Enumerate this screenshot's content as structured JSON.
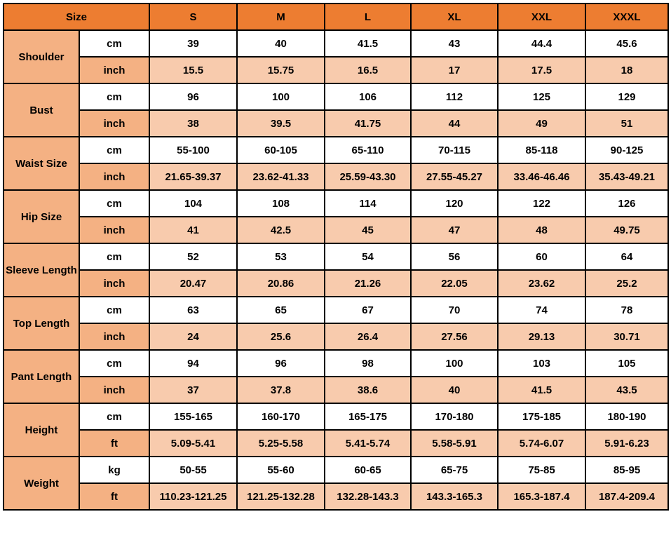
{
  "header": {
    "size_label": "Size",
    "sizes": [
      "S",
      "M",
      "L",
      "XL",
      "XXL",
      "XXXL"
    ]
  },
  "colors": {
    "header": "#ED7D31",
    "label": "#F4B183",
    "alt_row": "#F8CBAD"
  },
  "rows": [
    {
      "label": "Shoulder",
      "units": [
        {
          "unit": "cm",
          "values": [
            "39",
            "40",
            "41.5",
            "43",
            "44.4",
            "45.6"
          ]
        },
        {
          "unit": "inch",
          "values": [
            "15.5",
            "15.75",
            "16.5",
            "17",
            "17.5",
            "18"
          ]
        }
      ]
    },
    {
      "label": "Bust",
      "units": [
        {
          "unit": "cm",
          "values": [
            "96",
            "100",
            "106",
            "112",
            "125",
            "129"
          ]
        },
        {
          "unit": "inch",
          "values": [
            "38",
            "39.5",
            "41.75",
            "44",
            "49",
            "51"
          ]
        }
      ]
    },
    {
      "label": "Waist Size",
      "units": [
        {
          "unit": "cm",
          "values": [
            "55-100",
            "60-105",
            "65-110",
            "70-115",
            "85-118",
            "90-125"
          ]
        },
        {
          "unit": "inch",
          "values": [
            "21.65-39.37",
            "23.62-41.33",
            "25.59-43.30",
            "27.55-45.27",
            "33.46-46.46",
            "35.43-49.21"
          ]
        }
      ]
    },
    {
      "label": "Hip Size",
      "units": [
        {
          "unit": "cm",
          "values": [
            "104",
            "108",
            "114",
            "120",
            "122",
            "126"
          ]
        },
        {
          "unit": "inch",
          "values": [
            "41",
            "42.5",
            "45",
            "47",
            "48",
            "49.75"
          ]
        }
      ]
    },
    {
      "label": "Sleeve Length",
      "units": [
        {
          "unit": "cm",
          "values": [
            "52",
            "53",
            "54",
            "56",
            "60",
            "64"
          ]
        },
        {
          "unit": "inch",
          "values": [
            "20.47",
            "20.86",
            "21.26",
            "22.05",
            "23.62",
            "25.2"
          ]
        }
      ]
    },
    {
      "label": "Top Length",
      "units": [
        {
          "unit": "cm",
          "values": [
            "63",
            "65",
            "67",
            "70",
            "74",
            "78"
          ]
        },
        {
          "unit": "inch",
          "values": [
            "24",
            "25.6",
            "26.4",
            "27.56",
            "29.13",
            "30.71"
          ]
        }
      ]
    },
    {
      "label": "Pant Length",
      "units": [
        {
          "unit": "cm",
          "values": [
            "94",
            "96",
            "98",
            "100",
            "103",
            "105"
          ]
        },
        {
          "unit": "inch",
          "values": [
            "37",
            "37.8",
            "38.6",
            "40",
            "41.5",
            "43.5"
          ]
        }
      ]
    },
    {
      "label": "Height",
      "units": [
        {
          "unit": "cm",
          "values": [
            "155-165",
            "160-170",
            "165-175",
            "170-180",
            "175-185",
            "180-190"
          ]
        },
        {
          "unit": "ft",
          "values": [
            "5.09-5.41",
            "5.25-5.58",
            "5.41-5.74",
            "5.58-5.91",
            "5.74-6.07",
            "5.91-6.23"
          ]
        }
      ]
    },
    {
      "label": "Weight",
      "units": [
        {
          "unit": "kg",
          "values": [
            "50-55",
            "55-60",
            "60-65",
            "65-75",
            "75-85",
            "85-95"
          ]
        },
        {
          "unit": "ft",
          "values": [
            "110.23-121.25",
            "121.25-132.28",
            "132.28-143.3",
            "143.3-165.3",
            "165.3-187.4",
            "187.4-209.4"
          ]
        }
      ]
    }
  ]
}
